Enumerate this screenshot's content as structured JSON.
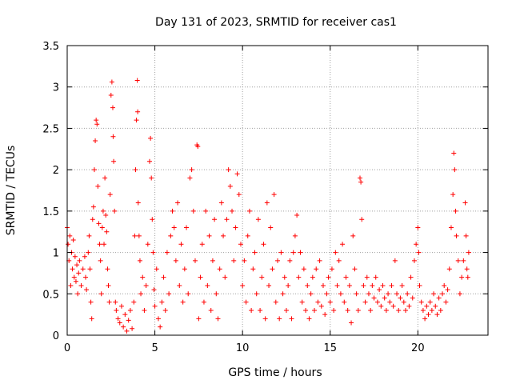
{
  "chart_data": {
    "type": "scatter",
    "title": "Day 131 of 2023, SRMTID for receiver cas1",
    "xlabel": "GPS time / hours",
    "ylabel": "SRMTID / TECUs",
    "xlim": [
      0,
      24
    ],
    "ylim": [
      0,
      3.5
    ],
    "x_ticks": [
      0,
      5,
      10,
      15,
      20
    ],
    "y_ticks": [
      0,
      0.5,
      1,
      1.5,
      2,
      2.5,
      3,
      3.5
    ],
    "x_tick_labels": [
      "0",
      "5",
      "10",
      "15",
      "20"
    ],
    "y_tick_labels": [
      "0",
      "0.5",
      "1",
      "1.5",
      "2",
      "2.5",
      "3",
      "3.5"
    ],
    "grid": true,
    "marker": "+",
    "colors": {
      "points": "#ff0000",
      "grid": "#a0a0a0",
      "axis": "#000000"
    },
    "series": [
      {
        "name": "cas1",
        "points": [
          [
            0.0,
            1.3
          ],
          [
            0.05,
            1.1
          ],
          [
            0.1,
            0.9
          ],
          [
            0.15,
            1.2
          ],
          [
            0.2,
            0.6
          ],
          [
            0.25,
            1.0
          ],
          [
            0.3,
            0.8
          ],
          [
            0.35,
            1.15
          ],
          [
            0.4,
            0.7
          ],
          [
            0.45,
            0.95
          ],
          [
            0.5,
            0.65
          ],
          [
            0.55,
            0.85
          ],
          [
            0.6,
            0.5
          ],
          [
            0.65,
            0.75
          ],
          [
            0.7,
            0.9
          ],
          [
            0.8,
            0.6
          ],
          [
            0.9,
            0.8
          ],
          [
            1.0,
            0.95
          ],
          [
            1.05,
            0.7
          ],
          [
            1.1,
            0.55
          ],
          [
            1.2,
            1.0
          ],
          [
            1.25,
            1.2
          ],
          [
            1.3,
            0.8
          ],
          [
            1.35,
            0.4
          ],
          [
            1.4,
            0.2
          ],
          [
            1.45,
            1.4
          ],
          [
            1.5,
            1.55
          ],
          [
            1.55,
            2.0
          ],
          [
            1.6,
            2.35
          ],
          [
            1.65,
            2.6
          ],
          [
            1.7,
            2.55
          ],
          [
            1.75,
            1.8
          ],
          [
            1.8,
            1.35
          ],
          [
            1.85,
            1.1
          ],
          [
            1.9,
            0.9
          ],
          [
            1.95,
            0.5
          ],
          [
            2.0,
            1.3
          ],
          [
            2.05,
            1.5
          ],
          [
            2.1,
            1.1
          ],
          [
            2.15,
            1.9
          ],
          [
            2.2,
            1.45
          ],
          [
            2.25,
            1.25
          ],
          [
            2.3,
            0.8
          ],
          [
            2.35,
            0.6
          ],
          [
            2.4,
            0.4
          ],
          [
            2.45,
            1.7
          ],
          [
            2.5,
            2.9
          ],
          [
            2.55,
            3.06
          ],
          [
            2.6,
            2.75
          ],
          [
            2.62,
            2.4
          ],
          [
            2.65,
            2.1
          ],
          [
            2.7,
            1.5
          ],
          [
            2.75,
            0.4
          ],
          [
            2.8,
            0.3
          ],
          [
            2.9,
            0.2
          ],
          [
            3.0,
            0.15
          ],
          [
            3.1,
            0.35
          ],
          [
            3.2,
            0.1
          ],
          [
            3.3,
            0.25
          ],
          [
            3.4,
            0.05
          ],
          [
            3.5,
            0.18
          ],
          [
            3.6,
            0.3
          ],
          [
            3.7,
            0.08
          ],
          [
            3.8,
            0.4
          ],
          [
            3.85,
            1.2
          ],
          [
            3.9,
            2.0
          ],
          [
            3.95,
            2.6
          ],
          [
            4.0,
            3.08
          ],
          [
            4.02,
            2.7
          ],
          [
            4.05,
            1.6
          ],
          [
            4.1,
            1.2
          ],
          [
            4.15,
            0.9
          ],
          [
            4.2,
            0.5
          ],
          [
            4.3,
            0.7
          ],
          [
            4.4,
            0.3
          ],
          [
            4.5,
            0.6
          ],
          [
            4.6,
            1.1
          ],
          [
            4.7,
            2.1
          ],
          [
            4.75,
            2.38
          ],
          [
            4.8,
            1.9
          ],
          [
            4.85,
            1.4
          ],
          [
            4.9,
            1.0
          ],
          [
            4.95,
            0.55
          ],
          [
            5.0,
            0.35
          ],
          [
            5.1,
            0.8
          ],
          [
            5.2,
            0.2
          ],
          [
            5.3,
            0.1
          ],
          [
            5.4,
            0.4
          ],
          [
            5.5,
            0.7
          ],
          [
            5.6,
            0.3
          ],
          [
            5.7,
            1.0
          ],
          [
            5.8,
            0.5
          ],
          [
            5.9,
            1.2
          ],
          [
            6.0,
            1.5
          ],
          [
            6.1,
            1.3
          ],
          [
            6.2,
            0.9
          ],
          [
            6.3,
            1.6
          ],
          [
            6.4,
            0.6
          ],
          [
            6.5,
            1.1
          ],
          [
            6.6,
            0.4
          ],
          [
            6.7,
            0.8
          ],
          [
            6.8,
            1.3
          ],
          [
            6.9,
            0.5
          ],
          [
            7.0,
            1.9
          ],
          [
            7.1,
            2.0
          ],
          [
            7.2,
            1.5
          ],
          [
            7.3,
            0.9
          ],
          [
            7.4,
            2.3
          ],
          [
            7.45,
            2.28
          ],
          [
            7.5,
            0.2
          ],
          [
            7.6,
            0.7
          ],
          [
            7.7,
            1.1
          ],
          [
            7.8,
            0.4
          ],
          [
            7.9,
            1.5
          ],
          [
            8.0,
            0.6
          ],
          [
            8.1,
            1.2
          ],
          [
            8.2,
            0.3
          ],
          [
            8.3,
            0.9
          ],
          [
            8.4,
            1.4
          ],
          [
            8.5,
            0.5
          ],
          [
            8.6,
            0.2
          ],
          [
            8.7,
            0.8
          ],
          [
            8.8,
            1.6
          ],
          [
            8.9,
            1.2
          ],
          [
            9.0,
            0.7
          ],
          [
            9.1,
            1.4
          ],
          [
            9.2,
            2.0
          ],
          [
            9.3,
            1.8
          ],
          [
            9.4,
            1.5
          ],
          [
            9.5,
            0.9
          ],
          [
            9.6,
            1.3
          ],
          [
            9.7,
            1.95
          ],
          [
            9.8,
            1.7
          ],
          [
            9.9,
            1.1
          ],
          [
            10.0,
            0.6
          ],
          [
            10.1,
            0.9
          ],
          [
            10.2,
            0.4
          ],
          [
            10.3,
            1.2
          ],
          [
            10.4,
            1.5
          ],
          [
            10.5,
            0.3
          ],
          [
            10.6,
            0.8
          ],
          [
            10.7,
            1.0
          ],
          [
            10.8,
            0.5
          ],
          [
            10.9,
            1.4
          ],
          [
            11.0,
            0.3
          ],
          [
            11.1,
            0.7
          ],
          [
            11.2,
            1.1
          ],
          [
            11.3,
            0.2
          ],
          [
            11.4,
            1.6
          ],
          [
            11.5,
            0.6
          ],
          [
            11.6,
            1.3
          ],
          [
            11.7,
            0.8
          ],
          [
            11.8,
            1.7
          ],
          [
            11.9,
            0.4
          ],
          [
            12.0,
            0.9
          ],
          [
            12.1,
            0.2
          ],
          [
            12.2,
            1.0
          ],
          [
            12.3,
            0.5
          ],
          [
            12.4,
            0.7
          ],
          [
            12.5,
            0.3
          ],
          [
            12.6,
            0.6
          ],
          [
            12.7,
            0.9
          ],
          [
            12.8,
            0.2
          ],
          [
            12.9,
            1.0
          ],
          [
            13.0,
            1.2
          ],
          [
            13.1,
            1.45
          ],
          [
            13.2,
            0.7
          ],
          [
            13.3,
            1.0
          ],
          [
            13.4,
            0.4
          ],
          [
            13.5,
            0.8
          ],
          [
            13.6,
            0.3
          ],
          [
            13.7,
            0.6
          ],
          [
            13.8,
            0.2
          ],
          [
            13.9,
            0.5
          ],
          [
            14.0,
            0.7
          ],
          [
            14.1,
            0.3
          ],
          [
            14.2,
            0.8
          ],
          [
            14.3,
            0.4
          ],
          [
            14.4,
            0.9
          ],
          [
            14.5,
            0.35
          ],
          [
            14.6,
            0.6
          ],
          [
            14.7,
            0.25
          ],
          [
            14.8,
            0.5
          ],
          [
            14.9,
            0.7
          ],
          [
            15.0,
            0.4
          ],
          [
            15.1,
            0.8
          ],
          [
            15.2,
            0.3
          ],
          [
            15.3,
            1.0
          ],
          [
            15.4,
            0.6
          ],
          [
            15.5,
            0.9
          ],
          [
            15.6,
            0.5
          ],
          [
            15.7,
            1.1
          ],
          [
            15.8,
            0.4
          ],
          [
            15.9,
            0.7
          ],
          [
            16.0,
            0.3
          ],
          [
            16.1,
            0.6
          ],
          [
            16.2,
            0.15
          ],
          [
            16.3,
            1.2
          ],
          [
            16.4,
            0.8
          ],
          [
            16.5,
            0.5
          ],
          [
            16.6,
            0.3
          ],
          [
            16.7,
            1.9
          ],
          [
            16.75,
            1.85
          ],
          [
            16.8,
            1.4
          ],
          [
            16.9,
            0.6
          ],
          [
            17.0,
            0.4
          ],
          [
            17.1,
            0.7
          ],
          [
            17.2,
            0.5
          ],
          [
            17.3,
            0.3
          ],
          [
            17.4,
            0.6
          ],
          [
            17.5,
            0.45
          ],
          [
            17.6,
            0.7
          ],
          [
            17.7,
            0.4
          ],
          [
            17.8,
            0.55
          ],
          [
            17.9,
            0.35
          ],
          [
            18.0,
            0.6
          ],
          [
            18.1,
            0.45
          ],
          [
            18.2,
            0.3
          ],
          [
            18.3,
            0.5
          ],
          [
            18.4,
            0.4
          ],
          [
            18.5,
            0.6
          ],
          [
            18.6,
            0.35
          ],
          [
            18.7,
            0.9
          ],
          [
            18.8,
            0.5
          ],
          [
            18.9,
            0.3
          ],
          [
            19.0,
            0.45
          ],
          [
            19.1,
            0.6
          ],
          [
            19.2,
            0.4
          ],
          [
            19.3,
            0.3
          ],
          [
            19.4,
            0.5
          ],
          [
            19.5,
            0.35
          ],
          [
            19.6,
            0.7
          ],
          [
            19.7,
            0.45
          ],
          [
            19.8,
            0.9
          ],
          [
            19.9,
            1.1
          ],
          [
            20.0,
            1.3
          ],
          [
            20.05,
            1.0
          ],
          [
            20.1,
            0.6
          ],
          [
            20.2,
            0.4
          ],
          [
            20.3,
            0.3
          ],
          [
            20.4,
            0.2
          ],
          [
            20.5,
            0.35
          ],
          [
            20.6,
            0.25
          ],
          [
            20.7,
            0.4
          ],
          [
            20.8,
            0.3
          ],
          [
            20.9,
            0.5
          ],
          [
            21.0,
            0.35
          ],
          [
            21.1,
            0.25
          ],
          [
            21.2,
            0.45
          ],
          [
            21.3,
            0.3
          ],
          [
            21.4,
            0.5
          ],
          [
            21.5,
            0.6
          ],
          [
            21.6,
            0.4
          ],
          [
            21.7,
            0.55
          ],
          [
            21.8,
            0.8
          ],
          [
            21.9,
            1.3
          ],
          [
            22.0,
            1.7
          ],
          [
            22.05,
            2.2
          ],
          [
            22.1,
            2.0
          ],
          [
            22.15,
            1.5
          ],
          [
            22.2,
            1.2
          ],
          [
            22.3,
            0.9
          ],
          [
            22.4,
            0.5
          ],
          [
            22.5,
            0.7
          ],
          [
            22.6,
            0.9
          ],
          [
            22.7,
            1.6
          ],
          [
            22.75,
            1.2
          ],
          [
            22.8,
            0.8
          ],
          [
            22.85,
            0.7
          ],
          [
            22.9,
            1.0
          ]
        ]
      }
    ]
  }
}
